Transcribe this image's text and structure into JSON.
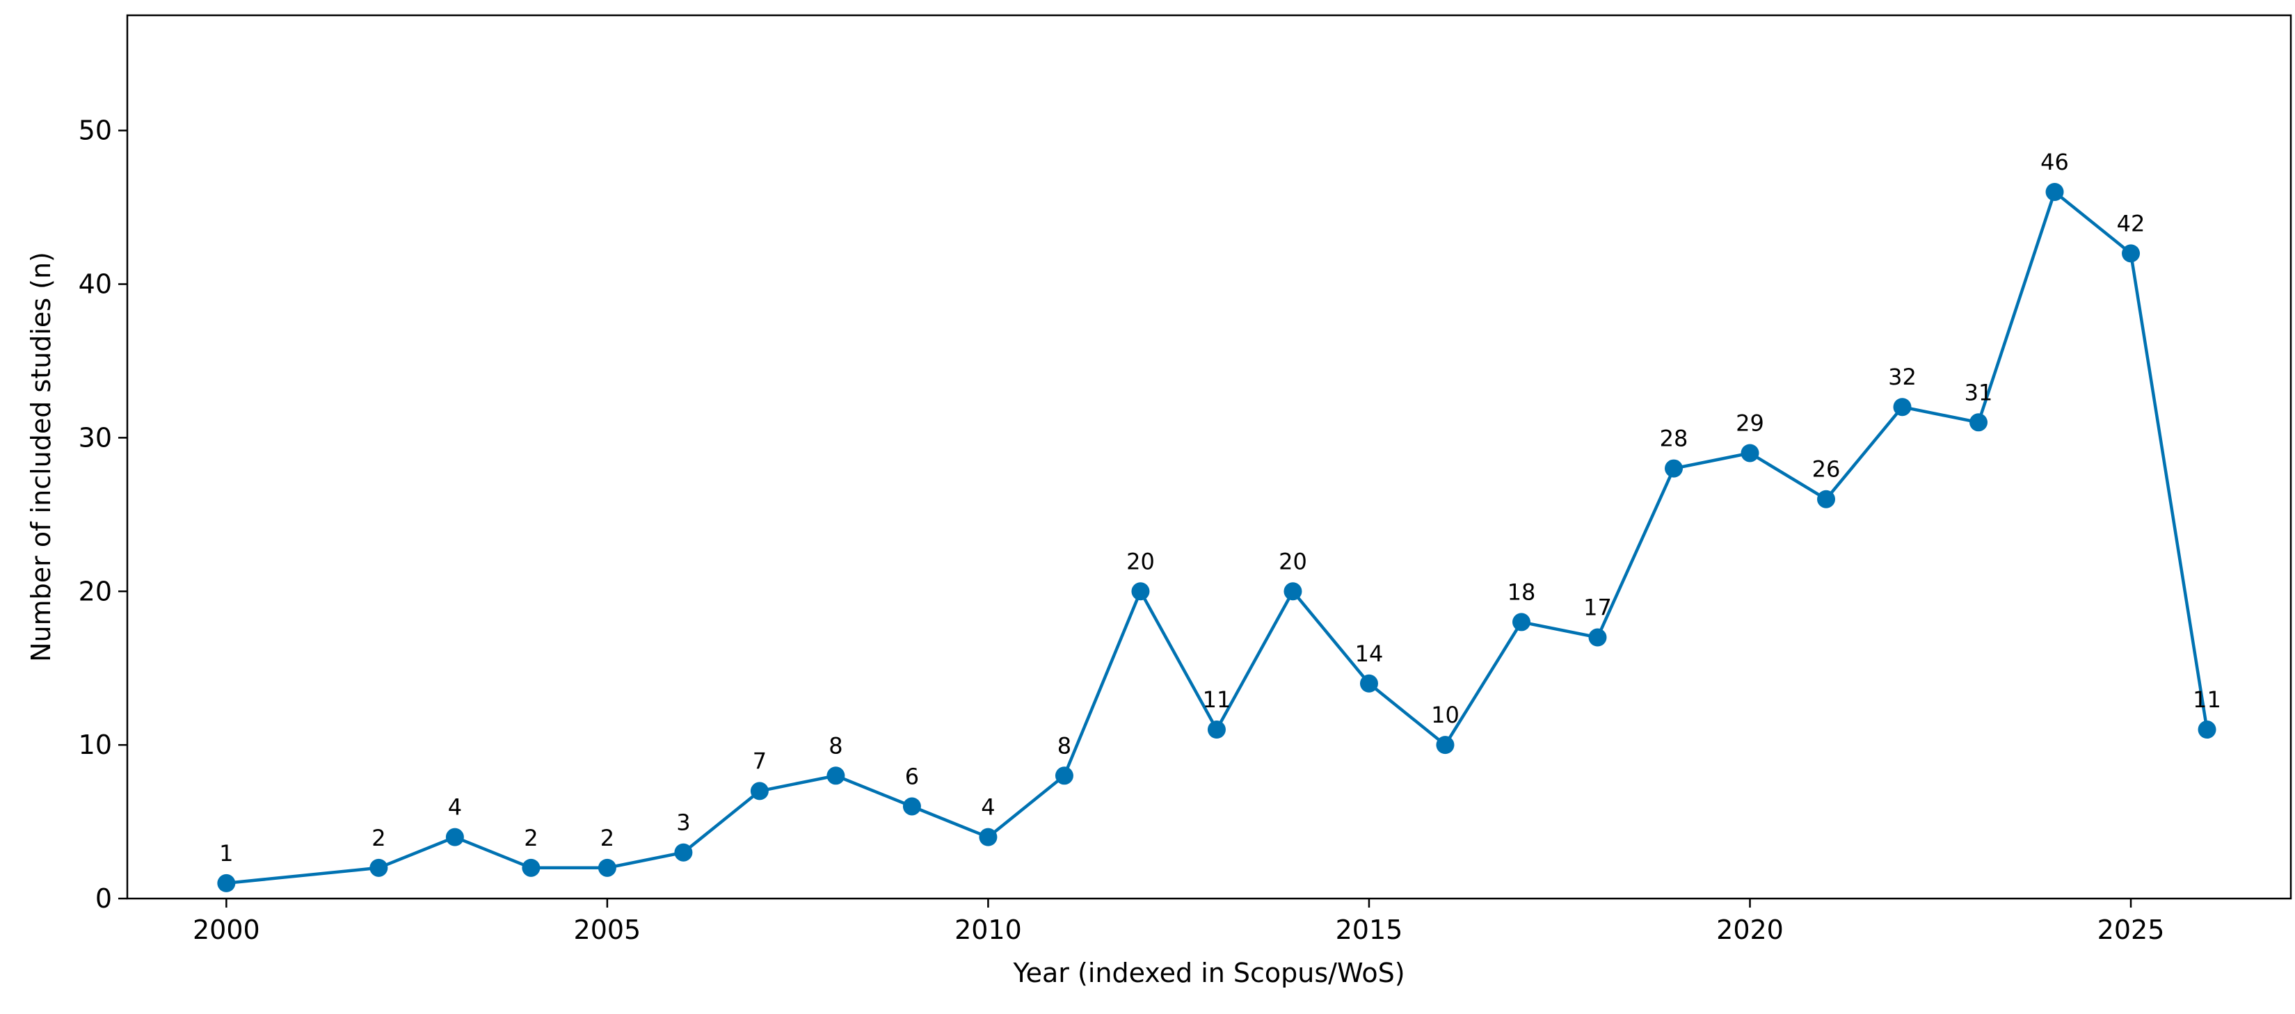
{
  "chart_data": {
    "type": "line",
    "title": "",
    "xlabel": "Year (indexed in Scopus/WoS)",
    "ylabel": "Number of included studies (n)",
    "xlim": [
      1998.7,
      2027.1
    ],
    "ylim": [
      0,
      57.5
    ],
    "xticks": [
      2000,
      2005,
      2010,
      2015,
      2020,
      2025
    ],
    "yticks": [
      0,
      10,
      20,
      30,
      40,
      50
    ],
    "grid": false,
    "legend": "none",
    "color": "#0072b2",
    "marker": "circle",
    "data_labels": true,
    "series": [
      {
        "x": [
          2000,
          2002,
          2003,
          2004,
          2005,
          2006,
          2007,
          2008,
          2009,
          2010,
          2011,
          2012,
          2013,
          2014,
          2015,
          2016,
          2017,
          2018,
          2019,
          2020,
          2021,
          2022,
          2023,
          2024,
          2025,
          2026
        ],
        "y": [
          1,
          2,
          4,
          2,
          2,
          3,
          7,
          8,
          6,
          4,
          8,
          20,
          11,
          20,
          14,
          10,
          18,
          17,
          28,
          29,
          26,
          32,
          31,
          46,
          42,
          11
        ]
      }
    ]
  }
}
